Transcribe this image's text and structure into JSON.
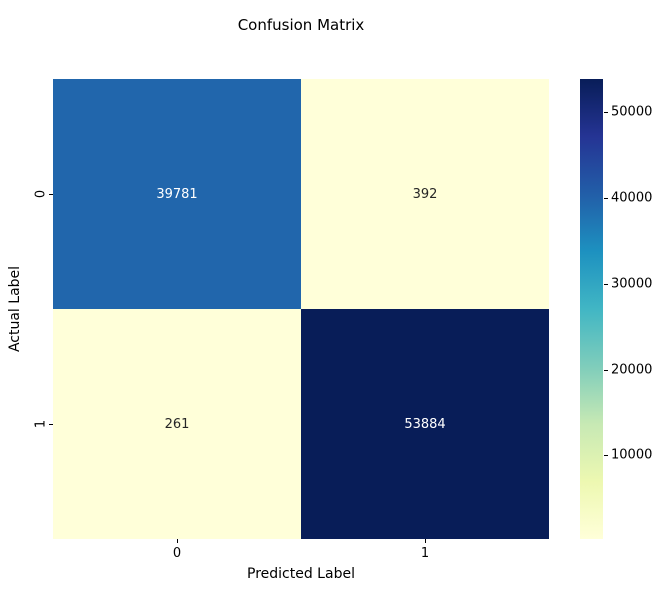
{
  "title": "Confusion Matrix",
  "chart_data": {
    "type": "heatmap",
    "title": "Confusion Matrix",
    "xlabel": "Predicted Label",
    "ylabel": "Actual Label",
    "x_tick_labels": [
      "0",
      "1"
    ],
    "y_tick_labels": [
      "0",
      "1"
    ],
    "matrix": [
      [
        39781,
        392
      ],
      [
        261,
        53884
      ]
    ],
    "cell_colors": [
      [
        "#2166ac",
        "#ffffd9"
      ],
      [
        "#ffffd9",
        "#081d58"
      ]
    ],
    "cell_text_colors": [
      [
        "#ffffff",
        "#262626"
      ],
      [
        "#262626",
        "#ffffff"
      ]
    ],
    "colormap": "YlGnBu",
    "vmin": 261,
    "vmax": 53884,
    "colorbar_ticks": [
      10000,
      20000,
      30000,
      40000,
      50000
    ],
    "colorbar_gradient": [
      "#ffffd9",
      "#edf8b1",
      "#c7e9b4",
      "#7fcdbb",
      "#41b6c4",
      "#1d91c0",
      "#225ea8",
      "#253494",
      "#081d58"
    ],
    "legend_position": "right",
    "grid": false
  }
}
